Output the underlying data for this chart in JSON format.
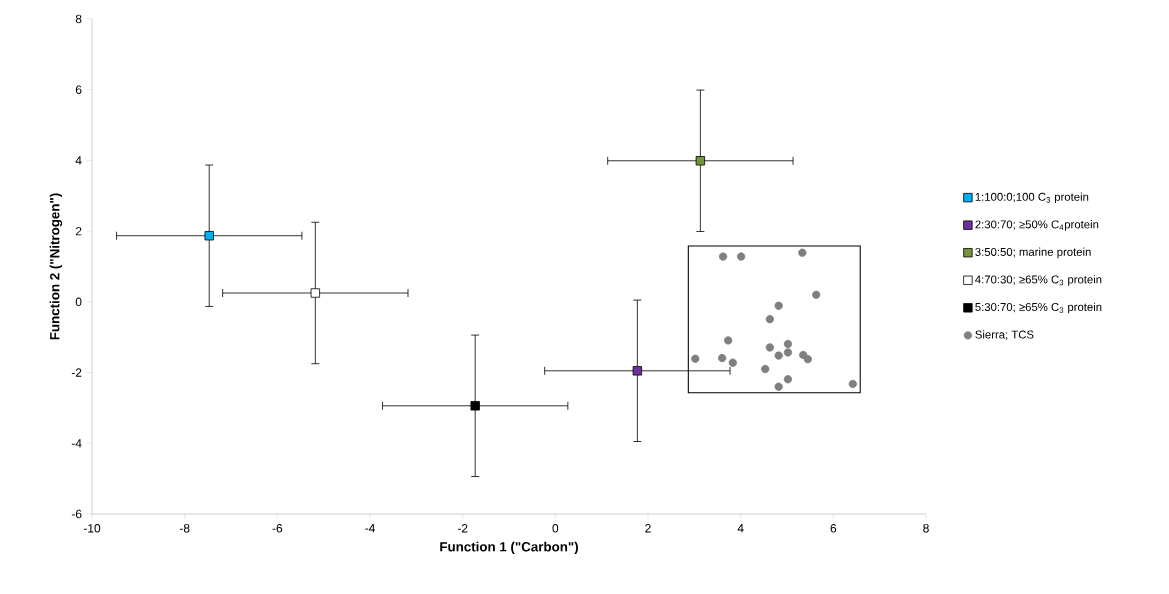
{
  "chart_data": {
    "type": "scatter",
    "xlabel": "Function 1 (\"Carbon\")",
    "ylabel": "Function 2 (\"Nitrogen\")",
    "xlim": [
      -10,
      8
    ],
    "xticks": [
      -10,
      -8,
      -6,
      -4,
      -2,
      0,
      2,
      4,
      6,
      8
    ],
    "ylim": [
      -6,
      8
    ],
    "yticks": [
      -6,
      -4,
      -2,
      0,
      2,
      4,
      6,
      8
    ],
    "grid": false,
    "legend": "right",
    "series": [
      {
        "name": "1:100:0;100 C$_{3}$ protein",
        "color": "#00b0f0",
        "marker": "square",
        "x": [
          -7.47
        ],
        "values": [
          1.87
        ],
        "xerrors": [
          2.0
        ],
        "errors": [
          2.0
        ]
      },
      {
        "name": "2:30:70; ≥50% C$_{4}$protein",
        "color": "#7030a0",
        "marker": "square",
        "x": [
          1.77
        ],
        "values": [
          -1.95
        ],
        "xerrors": [
          2.0
        ],
        "errors": [
          2.0
        ]
      },
      {
        "name": "3:50:50; marine protein",
        "color": "#77933c",
        "marker": "square",
        "x": [
          3.13
        ],
        "values": [
          3.99
        ],
        "xerrors": [
          2.0
        ],
        "errors": [
          2.0
        ]
      },
      {
        "name": "4:70:30; ≥65% C$_{3}$ protein",
        "color": "#ffffff",
        "marker": "square",
        "x": [
          -5.18
        ],
        "values": [
          0.25
        ],
        "xerrors": [
          2.0
        ],
        "errors": [
          2.0
        ]
      },
      {
        "name": "5:30:70; ≥65% C$_{3}$ protein",
        "color": "#000000",
        "marker": "square",
        "x": [
          -1.73
        ],
        "values": [
          -2.94
        ],
        "xerrors": [
          2.0
        ],
        "errors": [
          2.0
        ]
      },
      {
        "name": "Sierra; TCS",
        "color": "#7f7f7f",
        "marker": "circle",
        "x": [
          3.62,
          4.01,
          5.33,
          5.63,
          4.82,
          4.63,
          3.73,
          3.02,
          3.6,
          3.83,
          4.63,
          4.82,
          5.02,
          5.02,
          5.35,
          5.45,
          4.53,
          5.02,
          4.82,
          6.42
        ],
        "values": [
          1.28,
          1.28,
          1.39,
          0.2,
          -0.11,
          -0.49,
          -1.09,
          -1.61,
          -1.59,
          -1.72,
          -1.29,
          -1.52,
          -1.19,
          -1.43,
          -1.5,
          -1.62,
          -1.9,
          -2.19,
          -2.4,
          -2.32
        ]
      }
    ]
  }
}
